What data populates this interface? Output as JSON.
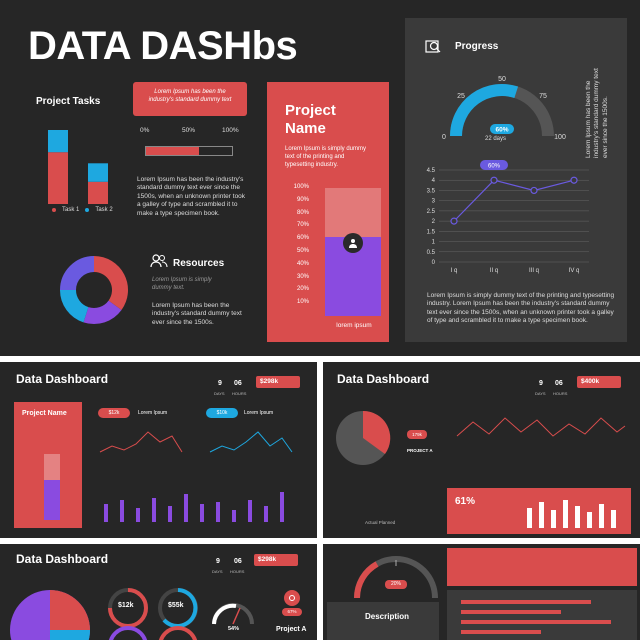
{
  "main": {
    "title": "DATA DASHbs",
    "project_tasks": {
      "heading": "Project Tasks",
      "legend1": "Task 1",
      "legend2": "Task 2"
    },
    "callout": "Lorem Ipsum has been the industry's standard dummy text",
    "scale": {
      "p0": "0%",
      "p50": "50%",
      "p100": "100%"
    },
    "text_block1": "Lorem Ipsum has been the industry's standard dummy text ever since the 1500s, when an unknown printer took a galley of type and scrambled it to make a type specimen book.",
    "resources": {
      "heading": "Resources",
      "italic": "Lorem Ipsum is simply dummy text.",
      "body": "Lorem Ipsum has been the industry's standard dummy text ever since the 1500s."
    },
    "project_name": {
      "title": "Project Name",
      "desc": "Lorem Ipsum is simply dummy text of the printing and typesetting industry.",
      "ticks": [
        "100%",
        "90%",
        "80%",
        "70%",
        "60%",
        "50%",
        "40%",
        "30%",
        "20%",
        "10%"
      ],
      "bar_label": "lorem ipsum",
      "fill_fraction": 0.62
    },
    "progress": {
      "heading": "Progress",
      "gauge_labels": {
        "l0": "0",
        "l25": "25",
        "l50": "50",
        "l75": "75",
        "l100": "100"
      },
      "gauge_value": "60%",
      "gauge_fraction": 0.6,
      "days": "22 days",
      "side_text": "Lorem Ipsum has been the industry's standard dummy text ever since the 1500s.",
      "line_badge": "60%",
      "body": "Lorem Ipsum is simply dummy text of the printing and typesetting industry. Lorem Ipsum has been the industry's standard dummy text ever since the 1500s, when an unknown printer took a galley of type and scrambled it to make a type specimen book."
    },
    "chart_data": {
      "type": "line",
      "x": [
        "I q",
        "II q",
        "III q",
        "IV q"
      ],
      "y": [
        2,
        4,
        3.5,
        4
      ],
      "ylim": [
        0,
        4.5
      ],
      "yticks": [
        "4.5",
        "4",
        "3.5",
        "3",
        "2.5",
        "2",
        "1.5",
        "1",
        "0.5",
        "0"
      ],
      "grid": true
    },
    "task_chart": {
      "type": "bar",
      "categories": [
        "Task 1",
        "Task 2"
      ],
      "series": [
        {
          "values": [
            0.7,
            0.3
          ],
          "color": "#d94d4d"
        },
        {
          "values": [
            0.3,
            0.25
          ],
          "color": "#1ea8e0"
        }
      ]
    },
    "donut": {
      "slices": [
        0.35,
        0.2,
        0.2,
        0.25
      ],
      "colors": [
        "#d94d4d",
        "#8a4be0",
        "#1ea8e0",
        "#6a5ae0"
      ]
    }
  },
  "thumb1": {
    "title": "Data Dashboard",
    "nine": "9",
    "six": "06",
    "days": "DAYS",
    "hours": "HOURS",
    "money": "$298k",
    "project": "Project Name",
    "pill1": "$12k",
    "pill2": "$10k",
    "lorem": "Lorem Ipsum"
  },
  "thumb2": {
    "title": "Data Dashboard",
    "nine": "9",
    "six": "06",
    "days": "DAYS",
    "hours": "HOURS",
    "money": "$400k",
    "badge": "179k",
    "project_a": "PROJECT A",
    "pct": "61%",
    "legend": "Actual  Planned"
  },
  "thumb3": {
    "title": "Data Dashboard",
    "nine": "9",
    "six": "06",
    "days": "DAYS",
    "hours": "HOURS",
    "money": "$298k",
    "k12": "$12k",
    "k55": "$55k",
    "gauge_pct": "54%",
    "badge": "67%",
    "project_a": "Project A"
  },
  "thumb4": {
    "gauge_pct": "20%",
    "description": "Description"
  }
}
